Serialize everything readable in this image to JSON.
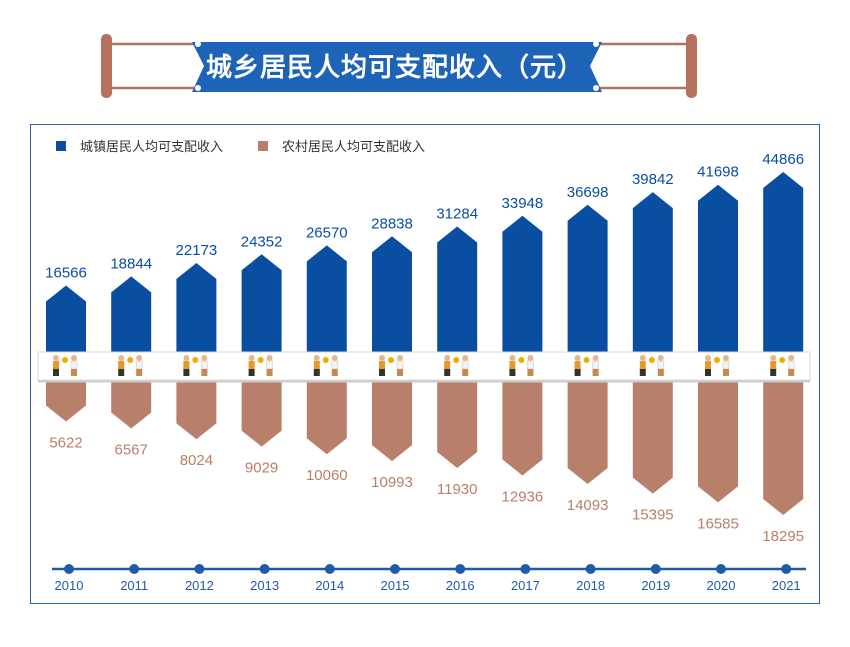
{
  "title": "城乡居民人均可支配收入（元）",
  "colors": {
    "urban": "#0a4ea2",
    "rural": "#b8806a",
    "banner": "#1d63b8",
    "frame": "#2a62ad",
    "pole": "#b5705e"
  },
  "legend": [
    {
      "label": "城镇居民人均可支配收入",
      "color": "#0a4ea2"
    },
    {
      "label": "农村居民人均可支配收入",
      "color": "#b8806a"
    }
  ],
  "chart_data": {
    "type": "bar",
    "title": "城乡居民人均可支配收入（元）",
    "categories": [
      "2010",
      "2011",
      "2012",
      "2013",
      "2014",
      "2015",
      "2016",
      "2017",
      "2018",
      "2019",
      "2020",
      "2021"
    ],
    "series": [
      {
        "name": "城镇居民人均可支配收入",
        "values": [
          16566,
          18844,
          22173,
          24352,
          26570,
          28838,
          31284,
          33948,
          36698,
          39842,
          41698,
          44866
        ]
      },
      {
        "name": "农村居民人均可支配收入",
        "values": [
          5622,
          6567,
          8024,
          9029,
          10060,
          10993,
          11930,
          12936,
          14093,
          15395,
          16585,
          18295
        ]
      }
    ],
    "legend_position": "top-left",
    "grid": false
  }
}
